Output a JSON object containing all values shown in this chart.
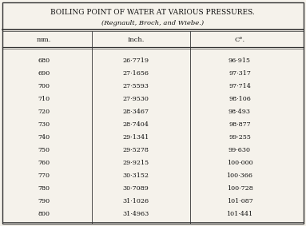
{
  "title": "BOILING POINT OF WATER AT VARIOUS PRESSURES.",
  "subtitle": "(Regnault, Broch, and Wiebe.)",
  "col_headers": [
    "mm.",
    "Inch.",
    "C°."
  ],
  "rows": [
    [
      "680",
      "26·7719",
      "96·915"
    ],
    [
      "690",
      "27·1656",
      "97·317"
    ],
    [
      "700",
      "27·5593",
      "97·714"
    ],
    [
      "710",
      "27·9530",
      "98·106"
    ],
    [
      "720",
      "28·3467",
      "98·493"
    ],
    [
      "730",
      "28·7404",
      "98·877"
    ],
    [
      "740",
      "29·1341",
      "99·255"
    ],
    [
      "750",
      "29·5278",
      "99·630"
    ],
    [
      "760",
      "29·9215",
      "100·000"
    ],
    [
      "770",
      "30·3152",
      "100·366"
    ],
    [
      "780",
      "30·7089",
      "100·728"
    ],
    [
      "790",
      "31·1026",
      "101·087"
    ],
    [
      "800",
      "31·4963",
      "101·441"
    ]
  ],
  "bg_color": "#f5f2eb",
  "border_color": "#333333",
  "text_color": "#111111",
  "title_fontsize": 6.5,
  "subtitle_fontsize": 6.0,
  "header_fontsize": 6.0,
  "data_fontsize": 5.8
}
